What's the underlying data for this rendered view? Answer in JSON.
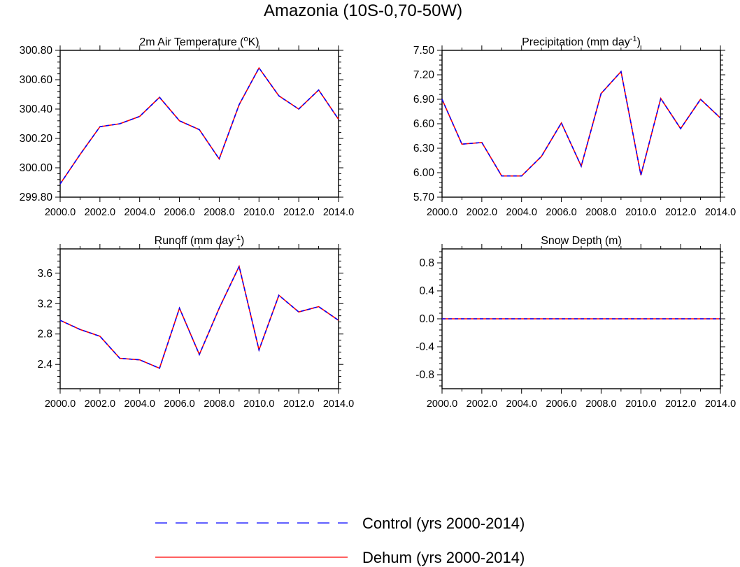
{
  "figure": {
    "title": "Amazonia (10S-0,70-50W)"
  },
  "legend": {
    "entries": [
      {
        "label": "Control (yrs 2000-2014)",
        "color": "#0000ff",
        "style": "dashed"
      },
      {
        "label": "Dehum (yrs 2000-2014)",
        "color": "#ff0000",
        "style": "solid"
      }
    ]
  },
  "chart_data": [
    {
      "type": "line",
      "title": "2m Air Temperature (oK)",
      "title_parts": {
        "main": "2m Air Temperature (",
        "sup": "o",
        "after": "K)"
      },
      "x": [
        2000,
        2001,
        2002,
        2003,
        2004,
        2005,
        2006,
        2007,
        2008,
        2009,
        2010,
        2011,
        2012,
        2013,
        2014
      ],
      "xlim": [
        2000,
        2014
      ],
      "xticks": [
        2000,
        2002,
        2004,
        2006,
        2008,
        2010,
        2012,
        2014
      ],
      "xtick_labels": [
        "2000.0",
        "2002.0",
        "2004.0",
        "2006.0",
        "2008.0",
        "2010.0",
        "2012.0",
        "2014.0"
      ],
      "ylim": [
        299.8,
        300.8
      ],
      "yticks": [
        299.8,
        300.0,
        300.2,
        300.4,
        300.6,
        300.8
      ],
      "ytick_labels": [
        "299.80",
        "300.00",
        "300.20",
        "300.40",
        "300.60",
        "300.80"
      ],
      "series": [
        {
          "name": "Control (yrs 2000-2014)",
          "values": [
            299.89,
            300.09,
            300.28,
            300.3,
            300.35,
            300.48,
            300.32,
            300.26,
            300.06,
            300.43,
            300.68,
            300.49,
            300.4,
            300.53,
            300.33
          ]
        },
        {
          "name": "Dehum (yrs 2000-2014)",
          "values": [
            299.89,
            300.09,
            300.28,
            300.3,
            300.35,
            300.48,
            300.32,
            300.26,
            300.06,
            300.43,
            300.68,
            300.49,
            300.4,
            300.53,
            300.33
          ]
        }
      ]
    },
    {
      "type": "line",
      "title": "Precipitation (mm day-1)",
      "title_parts": {
        "main": "Precipitation (mm day",
        "sup": "-1",
        "after": ")"
      },
      "x": [
        2000,
        2001,
        2002,
        2003,
        2004,
        2005,
        2006,
        2007,
        2008,
        2009,
        2010,
        2011,
        2012,
        2013,
        2014
      ],
      "xlim": [
        2000,
        2014
      ],
      "xticks": [
        2000,
        2002,
        2004,
        2006,
        2008,
        2010,
        2012,
        2014
      ],
      "xtick_labels": [
        "2000.0",
        "2002.0",
        "2004.0",
        "2006.0",
        "2008.0",
        "2010.0",
        "2012.0",
        "2014.0"
      ],
      "ylim": [
        5.7,
        7.5
      ],
      "yticks": [
        5.7,
        6.0,
        6.3,
        6.6,
        6.9,
        7.2,
        7.5
      ],
      "ytick_labels": [
        "5.70",
        "6.00",
        "6.30",
        "6.60",
        "6.90",
        "7.20",
        "7.50"
      ],
      "series": [
        {
          "name": "Control (yrs 2000-2014)",
          "values": [
            6.9,
            6.35,
            6.37,
            5.96,
            5.96,
            6.2,
            6.61,
            6.08,
            6.97,
            7.24,
            5.97,
            6.91,
            6.54,
            6.9,
            6.67
          ]
        },
        {
          "name": "Dehum (yrs 2000-2014)",
          "values": [
            6.9,
            6.35,
            6.37,
            5.96,
            5.96,
            6.2,
            6.61,
            6.08,
            6.97,
            7.24,
            5.97,
            6.91,
            6.54,
            6.9,
            6.67
          ]
        }
      ]
    },
    {
      "type": "line",
      "title": "Runoff (mm day-1)",
      "title_parts": {
        "main": "Runoff (mm day",
        "sup": "-1",
        "after": ")"
      },
      "x": [
        2000,
        2001,
        2002,
        2003,
        2004,
        2005,
        2006,
        2007,
        2008,
        2009,
        2010,
        2011,
        2012,
        2013,
        2014
      ],
      "xlim": [
        2000,
        2014
      ],
      "xticks": [
        2000,
        2002,
        2004,
        2006,
        2008,
        2010,
        2012,
        2014
      ],
      "xtick_labels": [
        "2000.0",
        "2002.0",
        "2004.0",
        "2006.0",
        "2008.0",
        "2010.0",
        "2012.0",
        "2014.0"
      ],
      "ylim": [
        2.08,
        3.92
      ],
      "yticks": [
        2.4,
        2.8,
        3.2,
        3.6
      ],
      "ytick_labels": [
        "2.4",
        "2.8",
        "3.2",
        "3.6"
      ],
      "series": [
        {
          "name": "Control (yrs 2000-2014)",
          "values": [
            2.98,
            2.86,
            2.77,
            2.48,
            2.46,
            2.35,
            3.14,
            2.53,
            3.14,
            3.69,
            2.59,
            3.31,
            3.09,
            3.16,
            2.98
          ]
        },
        {
          "name": "Dehum (yrs 2000-2014)",
          "values": [
            2.98,
            2.86,
            2.77,
            2.48,
            2.46,
            2.35,
            3.14,
            2.53,
            3.14,
            3.69,
            2.59,
            3.31,
            3.09,
            3.16,
            2.98
          ]
        }
      ]
    },
    {
      "type": "line",
      "title": "Snow Depth (m)",
      "title_parts": {
        "main": "Snow Depth (m)",
        "sup": "",
        "after": ""
      },
      "x": [
        2000,
        2001,
        2002,
        2003,
        2004,
        2005,
        2006,
        2007,
        2008,
        2009,
        2010,
        2011,
        2012,
        2013,
        2014
      ],
      "xlim": [
        2000,
        2014
      ],
      "xticks": [
        2000,
        2002,
        2004,
        2006,
        2008,
        2010,
        2012,
        2014
      ],
      "xtick_labels": [
        "2000.0",
        "2002.0",
        "2004.0",
        "2006.0",
        "2008.0",
        "2010.0",
        "2012.0",
        "2014.0"
      ],
      "ylim": [
        -1.0,
        1.0
      ],
      "yticks": [
        -0.8,
        -0.4,
        0.0,
        0.4,
        0.8
      ],
      "ytick_labels": [
        "-0.8",
        "-0.4",
        "0.0",
        "0.4",
        "0.8"
      ],
      "series": [
        {
          "name": "Control (yrs 2000-2014)",
          "values": [
            0,
            0,
            0,
            0,
            0,
            0,
            0,
            0,
            0,
            0,
            0,
            0,
            0,
            0,
            0
          ]
        },
        {
          "name": "Dehum (yrs 2000-2014)",
          "values": [
            0,
            0,
            0,
            0,
            0,
            0,
            0,
            0,
            0,
            0,
            0,
            0,
            0,
            0,
            0
          ]
        }
      ]
    }
  ]
}
